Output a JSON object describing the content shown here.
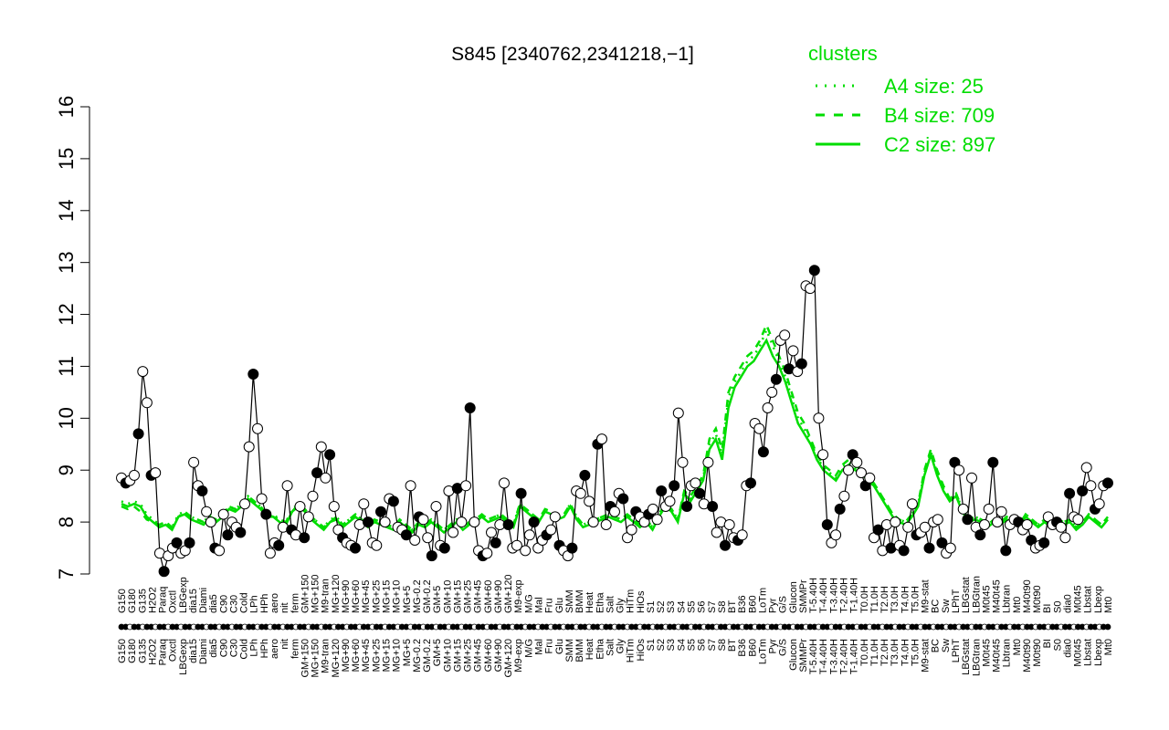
{
  "chart_data": {
    "type": "line",
    "title": "S845 [2340762,2341218,−1]",
    "xlabel": "",
    "ylabel": "",
    "ylim": [
      7,
      16
    ],
    "yticks": [
      7,
      8,
      9,
      10,
      11,
      12,
      13,
      14,
      15,
      16
    ],
    "grid": false,
    "legend": {
      "title": "clusters",
      "placement": "top-right",
      "color": "#00dd00",
      "entries": [
        {
          "label": "A4 size: 25",
          "style": "dotted"
        },
        {
          "label": "B4 size: 709",
          "style": "dashed"
        },
        {
          "label": "C2 size: 897",
          "style": "solid"
        }
      ]
    },
    "x_tick_labels": [
      "G150",
      "G180",
      "G135",
      "H2O2",
      "Paraq",
      "Oxctl",
      "LBGexp",
      "dia15",
      "Diami",
      "dia5",
      "C90",
      "C30",
      "Cold",
      "LPh",
      "HPh",
      "aero",
      "nit",
      "ferm",
      "GM+150",
      "MG+150",
      "M9-tran",
      "MG+120",
      "MG+90",
      "MG+60",
      "MG+45",
      "MG+25",
      "MG+15",
      "MG+10",
      "MG+5",
      "MG-0.2",
      "GM-0.2",
      "GM+5",
      "GM+10",
      "GM+15",
      "GM+25",
      "GM+45",
      "GM+60",
      "GM+90",
      "GM+120",
      "M9-exp",
      "M/G",
      "Mal",
      "Fru",
      "Glu",
      "SMM",
      "BMM",
      "Heat",
      "Etha",
      "Salt",
      "Gly",
      "HiTm",
      "HiOs",
      "S1",
      "S2",
      "S3",
      "S4",
      "S5",
      "S6",
      "S7",
      "S8",
      "BT",
      "B36",
      "B60",
      "LoTm",
      "Pyr",
      "G/S",
      "Glucon",
      "SMMPr",
      "T-5.40H",
      "T-4.40H",
      "T-3.40H",
      "T-2.40H",
      "T-1.40H",
      "T0.0H",
      "T1.0H",
      "T2.0H",
      "T3.0H",
      "T4.0H",
      "T5.0H",
      "M9-stat",
      "BC",
      "Sw",
      "LPhT",
      "LBGstat",
      "LBGtran",
      "M0t45",
      "M40t45",
      "Lbtran",
      "Mt0",
      "M40t90",
      "M0t90",
      "BI",
      "S0",
      "dia0",
      "M0t45",
      "Lbstat",
      "Lbexp",
      "Mt0"
    ],
    "x_tick_labels_visible": [
      "G150",
      "G180",
      "G135",
      "H2O2",
      "Paraq",
      "Oxctl",
      "LBGexp",
      "dia15",
      "Diami",
      "dia5",
      "C90",
      "C30",
      "Cold",
      "LPh",
      "HPh",
      "aero",
      "nit",
      "ferm",
      "GM+150",
      "MG+150",
      "M9-tran",
      "MG+120",
      "MG+90",
      "MG+60",
      "MG+45",
      "MG+25",
      "MG+15",
      "MG+10",
      "MG+5",
      "MG-0.2",
      "GM-0.2",
      "GM+5",
      "GM+10",
      "GM+15",
      "GM+25",
      "GM+45",
      "GM+60",
      "GM+90",
      "GM+120",
      "M9-exp",
      "M/G",
      "Mal",
      "Fru",
      "Glu",
      "SMM",
      "BMM",
      "Heat",
      "Etha",
      "Salt",
      "Gly",
      "HiTm",
      "HiOs",
      "S1",
      "S2",
      "S3",
      "S4",
      "S5",
      "S6",
      "S7",
      "S8",
      "BT",
      "B36",
      "B60",
      "LoTm",
      "Pyr",
      "G/S",
      "Glucon",
      "SMMPr",
      "T-5.40H",
      "T-4.40H",
      "T-3.40H",
      "T-2.40H",
      "T-1.40H",
      "T0.0H",
      "T1.0H",
      "T2.0H",
      "T3.0H",
      "T4.0H",
      "T5.0H",
      "M9-stat",
      "BC",
      "Sw",
      "LPhT",
      "LBGstat",
      "LBGtran",
      "M0t45",
      "M40t45",
      "Lbtran",
      "Mt0",
      "M40t90",
      "M0t90",
      "BI",
      "S0",
      "dia0",
      "M0t45",
      "Lbstat",
      "Lbexp",
      "Mt0"
    ],
    "n_samples": 200,
    "series": [
      {
        "style": "points",
        "values": [
          8.85,
          8.75,
          8.8,
          8.9,
          9.7,
          10.9,
          10.3,
          8.9,
          8.95,
          7.4,
          7.05,
          7.35,
          7.5,
          7.6,
          7.4,
          7.45,
          7.6,
          9.15,
          8.7,
          8.6,
          8.2,
          8.0,
          7.5,
          7.45,
          8.15,
          7.75,
          8.0,
          7.9,
          7.8,
          8.35,
          9.45,
          10.85,
          9.8,
          8.45,
          8.15,
          7.4,
          7.6,
          7.55,
          7.9,
          8.7,
          7.85,
          7.75,
          8.3,
          7.7,
          8.1,
          8.5,
          8.95,
          9.45,
          8.85,
          9.3,
          8.3,
          7.85,
          7.7,
          7.6,
          7.55,
          7.5,
          7.95,
          8.35,
          8.0,
          7.6,
          7.55,
          8.2,
          8.0,
          8.45,
          8.4,
          7.9,
          7.85,
          7.75,
          8.7,
          7.65,
          8.1,
          8.05,
          7.7,
          7.35,
          8.3,
          7.55,
          7.5,
          8.6,
          7.8,
          8.65,
          8.0,
          8.7,
          10.2,
          8.0,
          7.45,
          7.35,
          7.4,
          7.8,
          7.6,
          7.95,
          8.75,
          7.95,
          7.5,
          7.55,
          8.55,
          7.45,
          7.75,
          8.0,
          7.5,
          7.65,
          7.75,
          7.85,
          8.1,
          7.55,
          7.45,
          7.35,
          7.5,
          8.6,
          8.55,
          8.9,
          8.4,
          8.0,
          9.5,
          9.6,
          7.95,
          8.3,
          8.2,
          8.55,
          8.45,
          7.7,
          7.85,
          8.2,
          8.1,
          8.0,
          8.15,
          8.25,
          8.05,
          8.6,
          8.3,
          8.4,
          8.7,
          10.1,
          9.15,
          8.3,
          8.7,
          8.75,
          8.55,
          8.35,
          9.15,
          8.3,
          7.8,
          8.0,
          7.55,
          7.95,
          7.7,
          7.65,
          7.75,
          8.7,
          8.75,
          9.9,
          9.8,
          9.35,
          10.2,
          10.5,
          10.75,
          11.5,
          11.6,
          10.95,
          11.3,
          10.9,
          11.05,
          12.55,
          12.5,
          12.85,
          10.0,
          9.3,
          7.95,
          7.6,
          7.75,
          8.25,
          8.5,
          9.0,
          9.3,
          9.15,
          8.95,
          8.7,
          8.85,
          7.7,
          7.85,
          7.45,
          7.95,
          7.5,
          8.0,
          7.55,
          7.45,
          7.9,
          8.35,
          7.75,
          7.8,
          7.9,
          7.5,
          8.0,
          8.05,
          7.6,
          7.4,
          7.5,
          9.15,
          9.0,
          8.25,
          8.05,
          8.85,
          7.9,
          7.75,
          7.95,
          8.25,
          9.15,
          8.0,
          8.2,
          7.45,
          7.95,
          8.05,
          8.0,
          7.85,
          7.95,
          7.65,
          7.5,
          7.55,
          7.6,
          8.1,
          7.95,
          8.0,
          7.9,
          7.7,
          8.55,
          8.1,
          8.05,
          8.6,
          9.05,
          8.7,
          8.25,
          8.35,
          8.7,
          8.75
        ]
      },
      {
        "style": "C2",
        "values": [
          8.35,
          8.3,
          8.35,
          8.3,
          8.1,
          8.0,
          7.9,
          7.95,
          7.85,
          8.1,
          8.15,
          8.05,
          8.0,
          7.95,
          8.1,
          8.0,
          8.1,
          8.25,
          8.2,
          8.3,
          8.45,
          8.35,
          8.25,
          8.1,
          8.1,
          8.0,
          7.95,
          8.2,
          8.3,
          8.2,
          8.05,
          7.95,
          7.85,
          8.0,
          8.05,
          7.9,
          8.0,
          8.1,
          8.0,
          7.9,
          8.0,
          7.95,
          7.9,
          7.85,
          8.0,
          7.9,
          7.8,
          7.95,
          7.9,
          8.0,
          7.9,
          7.8,
          7.9,
          8.0,
          7.85,
          7.95,
          8.0,
          8.1,
          8.0,
          8.05,
          8.1,
          8.0,
          7.9,
          8.3,
          8.2,
          8.1,
          8.0,
          8.2,
          8.15,
          8.05,
          8.1,
          8.3,
          8.05,
          7.9,
          7.95,
          8.0,
          8.05,
          8.1,
          8.05,
          8.0,
          8.1,
          8.0,
          7.9,
          8.0,
          7.85,
          8.1,
          8.3,
          8.2,
          8.0,
          8.55,
          8.4,
          8.6,
          8.8,
          9.4,
          9.6,
          9.2,
          10.2,
          10.6,
          10.8,
          11.0,
          11.1,
          11.3,
          11.5,
          11.2,
          11.0,
          10.7,
          10.3,
          9.9,
          9.7,
          9.5,
          9.2,
          9.0,
          8.9,
          8.8,
          9.0,
          9.1,
          9.0,
          8.95,
          8.8,
          8.7,
          8.5,
          8.3,
          8.1,
          8.0,
          7.95,
          8.1,
          8.3,
          8.9,
          9.3,
          8.9,
          8.6,
          8.4,
          8.5,
          8.2,
          8.0,
          8.05,
          8.0,
          7.9,
          8.0,
          7.95,
          8.05,
          8.0,
          7.9,
          8.1,
          8.0,
          7.9,
          8.0,
          7.9,
          8.0,
          7.95,
          8.0,
          7.85,
          7.95,
          8.1,
          8.0,
          7.9,
          8.05
        ]
      },
      {
        "style": "B4",
        "values": [
          8.3,
          8.25,
          8.3,
          8.2,
          8.05,
          8.0,
          7.95,
          8.0,
          7.9,
          8.1,
          8.2,
          8.1,
          8.05,
          8.0,
          8.1,
          8.05,
          8.15,
          8.3,
          8.25,
          8.35,
          8.5,
          8.4,
          8.3,
          8.15,
          8.1,
          8.05,
          8.0,
          8.2,
          8.35,
          8.25,
          8.1,
          8.0,
          7.9,
          8.0,
          8.1,
          7.95,
          8.05,
          8.15,
          8.05,
          7.95,
          8.05,
          8.0,
          7.95,
          7.9,
          8.05,
          7.95,
          7.85,
          8.0,
          7.95,
          8.05,
          7.95,
          7.85,
          7.95,
          8.05,
          7.9,
          8.0,
          8.05,
          8.15,
          8.05,
          8.1,
          8.15,
          8.05,
          7.95,
          8.35,
          8.25,
          8.15,
          8.05,
          8.25,
          8.2,
          8.1,
          8.15,
          8.35,
          8.1,
          7.95,
          8.0,
          8.05,
          8.1,
          8.15,
          8.1,
          8.05,
          8.15,
          8.05,
          7.95,
          8.05,
          7.9,
          8.15,
          8.35,
          8.25,
          8.05,
          8.6,
          8.5,
          8.7,
          8.9,
          9.6,
          9.8,
          9.4,
          10.5,
          10.8,
          11.0,
          11.2,
          11.3,
          11.5,
          11.8,
          11.5,
          11.2,
          10.9,
          10.5,
          10.1,
          9.9,
          9.6,
          9.3,
          9.1,
          9.0,
          8.9,
          9.1,
          9.2,
          9.1,
          9.0,
          8.85,
          8.75,
          8.55,
          8.35,
          8.15,
          8.05,
          8.0,
          8.15,
          8.35,
          9.0,
          9.4,
          9.0,
          8.7,
          8.45,
          8.55,
          8.25,
          8.05,
          8.1,
          8.05,
          7.95,
          8.05,
          8.0,
          8.1,
          8.05,
          7.95,
          8.15,
          8.05,
          7.95,
          8.05,
          7.95,
          8.05,
          8.0,
          8.05,
          7.9,
          8.0,
          8.15,
          8.05,
          7.95,
          8.1
        ]
      },
      {
        "style": "A4",
        "values": [
          8.4,
          8.35,
          8.4,
          8.35,
          8.15,
          8.05,
          7.95,
          8.0,
          7.9,
          8.15,
          8.2,
          8.1,
          8.05,
          8.0,
          8.15,
          8.05,
          8.15,
          8.3,
          8.25,
          8.35,
          8.5,
          8.4,
          8.3,
          8.15,
          8.15,
          8.05,
          8.0,
          8.25,
          8.35,
          8.25,
          8.1,
          8.0,
          7.9,
          8.05,
          8.1,
          7.95,
          8.05,
          8.15,
          8.05,
          7.95,
          8.05,
          8.0,
          7.95,
          7.9,
          8.05,
          7.95,
          7.85,
          8.0,
          7.95,
          8.05,
          7.95,
          7.85,
          7.95,
          8.05,
          7.9,
          8.0,
          8.05,
          8.15,
          8.05,
          8.1,
          8.15,
          8.05,
          7.95,
          8.35,
          8.25,
          8.15,
          8.05,
          8.25,
          8.2,
          8.1,
          8.15,
          8.35,
          8.1,
          7.95,
          8.0,
          8.05,
          8.1,
          8.15,
          8.1,
          8.05,
          8.15,
          8.05,
          7.95,
          8.05,
          7.9,
          8.15,
          8.35,
          8.25,
          8.05,
          8.6,
          8.45,
          8.65,
          8.85,
          9.5,
          9.7,
          9.3,
          10.4,
          10.7,
          10.9,
          11.1,
          11.2,
          11.4,
          11.7,
          11.4,
          11.1,
          10.8,
          10.4,
          10.0,
          9.8,
          9.55,
          9.25,
          9.05,
          8.95,
          8.85,
          9.05,
          9.15,
          9.05,
          9.0,
          8.85,
          8.75,
          8.55,
          8.35,
          8.15,
          8.05,
          8.0,
          8.15,
          8.35,
          8.95,
          9.35,
          8.95,
          8.65,
          8.45,
          8.55,
          8.25,
          8.05,
          8.1,
          8.05,
          7.95,
          8.05,
          8.0,
          8.1,
          8.05,
          7.95,
          8.15,
          8.05,
          7.95,
          8.05,
          7.95,
          8.05,
          8.0,
          8.05,
          7.9,
          8.0,
          8.15,
          8.05,
          7.95,
          8.1
        ]
      }
    ]
  }
}
